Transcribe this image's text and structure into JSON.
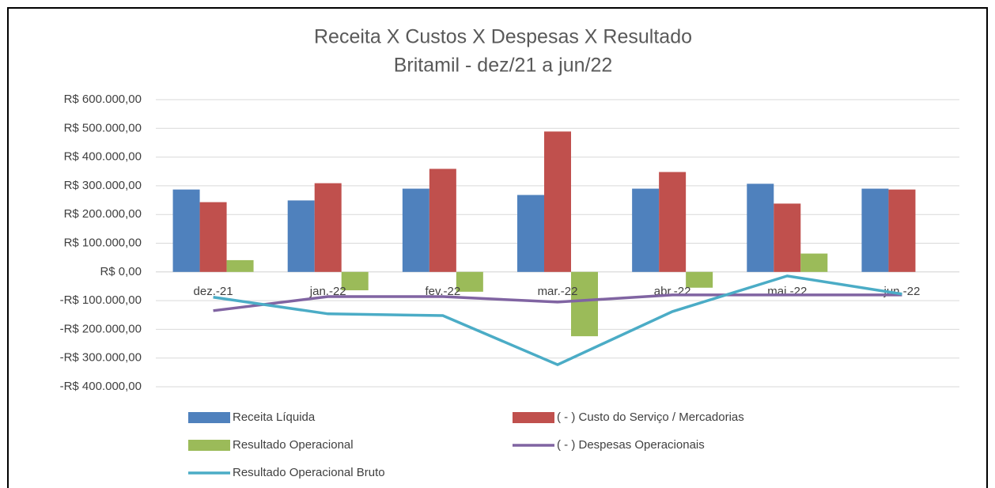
{
  "chart_data": {
    "type": "bar",
    "title": "Receita X Custos X Despesas X Resultado",
    "subtitle": "Britamil - dez/21 a jun/22",
    "categories": [
      "dez.-21",
      "jan.-22",
      "fev.-22",
      "mar.-22",
      "abr.-22",
      "mai.-22",
      "jun.-22"
    ],
    "series": [
      {
        "name": "Receita Líquida",
        "type": "bar",
        "color": "#4f81bd",
        "values": [
          287000,
          249000,
          290000,
          268000,
          290000,
          307000,
          290000
        ]
      },
      {
        "name": "( - ) Custo do Serviço / Mercadorias",
        "type": "bar",
        "color": "#c0504d",
        "values": [
          243000,
          309000,
          359000,
          489000,
          348000,
          238000,
          287000
        ]
      },
      {
        "name": "Resultado Operacional",
        "type": "bar",
        "color": "#9bbb59",
        "values": [
          41000,
          -64000,
          -69000,
          -224000,
          -55000,
          64000,
          0
        ]
      },
      {
        "name": "( - ) Despesas Operacionais",
        "type": "line",
        "color": "#8064a2",
        "values": [
          -135000,
          -86000,
          -86000,
          -105000,
          -80000,
          -80000,
          -80000
        ]
      },
      {
        "name": "Resultado Operacional Bruto",
        "type": "line",
        "color": "#4bacc6",
        "values": [
          -88000,
          -146000,
          -152000,
          -323000,
          -138000,
          -14000,
          -77000
        ]
      }
    ],
    "ylim": [
      -400000,
      600000
    ],
    "yticks": [
      {
        "value": 600000,
        "label": "R$ 600.000,00"
      },
      {
        "value": 500000,
        "label": "R$ 500.000,00"
      },
      {
        "value": 400000,
        "label": "R$ 400.000,00"
      },
      {
        "value": 300000,
        "label": "R$ 300.000,00"
      },
      {
        "value": 200000,
        "label": "R$ 200.000,00"
      },
      {
        "value": 100000,
        "label": "R$ 100.000,00"
      },
      {
        "value": 0,
        "label": "R$ 0,00"
      },
      {
        "value": -100000,
        "label": "-R$ 100.000,00"
      },
      {
        "value": -200000,
        "label": "-R$ 200.000,00"
      },
      {
        "value": -300000,
        "label": "-R$ 300.000,00"
      },
      {
        "value": -400000,
        "label": "-R$ 400.000,00"
      }
    ],
    "grid": true
  }
}
